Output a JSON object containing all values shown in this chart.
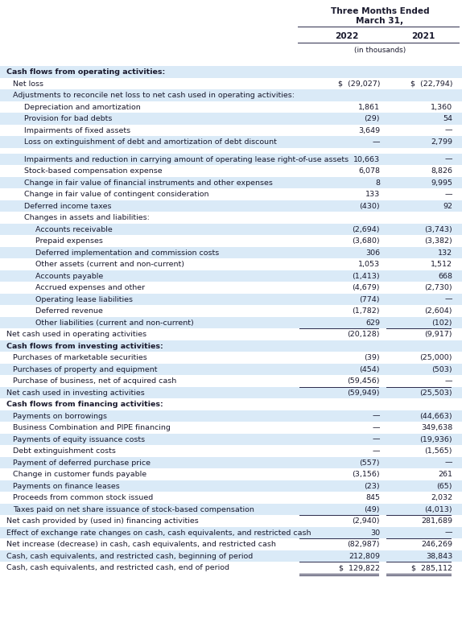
{
  "title_line1": "Three Months Ended",
  "title_line2": "March 31,",
  "col1_header": "2022",
  "col2_header": "2021",
  "subheader": "(in thousands)",
  "rows": [
    {
      "label": "Cash flows from operating activities:",
      "indent": 0,
      "v2022": "",
      "v2021": "",
      "section_header": true,
      "bg": "light"
    },
    {
      "label": "Net loss",
      "indent": 1,
      "v2022": "$  (29,027)",
      "v2021": "$  (22,794)",
      "section_header": false,
      "bg": "white"
    },
    {
      "label": "Adjustments to reconcile net loss to net cash used in operating activities:",
      "indent": 1,
      "v2022": "",
      "v2021": "",
      "section_header": false,
      "bg": "light"
    },
    {
      "label": "Depreciation and amortization",
      "indent": 2,
      "v2022": "1,861",
      "v2021": "1,360",
      "section_header": false,
      "bg": "white"
    },
    {
      "label": "Provision for bad debts",
      "indent": 2,
      "v2022": "(29)",
      "v2021": "54",
      "section_header": false,
      "bg": "light"
    },
    {
      "label": "Impairments of fixed assets",
      "indent": 2,
      "v2022": "3,649",
      "v2021": "—",
      "section_header": false,
      "bg": "white"
    },
    {
      "label": "Loss on extinguishment of debt and amortization of debt discount",
      "indent": 2,
      "v2022": "—",
      "v2021": "2,799",
      "section_header": false,
      "bg": "light"
    },
    {
      "label": "",
      "indent": 0,
      "v2022": "",
      "v2021": "",
      "section_header": false,
      "bg": "white",
      "spacer": true
    },
    {
      "label": "Impairments and reduction in carrying amount of operating lease right-of-use assets",
      "indent": 2,
      "v2022": "10,663",
      "v2021": "—",
      "section_header": false,
      "bg": "light"
    },
    {
      "label": "Stock-based compensation expense",
      "indent": 2,
      "v2022": "6,078",
      "v2021": "8,826",
      "section_header": false,
      "bg": "white"
    },
    {
      "label": "Change in fair value of financial instruments and other expenses",
      "indent": 2,
      "v2022": "8",
      "v2021": "9,995",
      "section_header": false,
      "bg": "light"
    },
    {
      "label": "Change in fair value of contingent consideration",
      "indent": 2,
      "v2022": "133",
      "v2021": "—",
      "section_header": false,
      "bg": "white"
    },
    {
      "label": "Deferred income taxes",
      "indent": 2,
      "v2022": "(430)",
      "v2021": "92",
      "section_header": false,
      "bg": "light"
    },
    {
      "label": "Changes in assets and liabilities:",
      "indent": 2,
      "v2022": "",
      "v2021": "",
      "section_header": false,
      "bg": "white"
    },
    {
      "label": "Accounts receivable",
      "indent": 3,
      "v2022": "(2,694)",
      "v2021": "(3,743)",
      "section_header": false,
      "bg": "light"
    },
    {
      "label": "Prepaid expenses",
      "indent": 3,
      "v2022": "(3,680)",
      "v2021": "(3,382)",
      "section_header": false,
      "bg": "white"
    },
    {
      "label": "Deferred implementation and commission costs",
      "indent": 3,
      "v2022": "306",
      "v2021": "132",
      "section_header": false,
      "bg": "light"
    },
    {
      "label": "Other assets (current and non-current)",
      "indent": 3,
      "v2022": "1,053",
      "v2021": "1,512",
      "section_header": false,
      "bg": "white"
    },
    {
      "label": "Accounts payable",
      "indent": 3,
      "v2022": "(1,413)",
      "v2021": "668",
      "section_header": false,
      "bg": "light"
    },
    {
      "label": "Accrued expenses and other",
      "indent": 3,
      "v2022": "(4,679)",
      "v2021": "(2,730)",
      "section_header": false,
      "bg": "white"
    },
    {
      "label": "Operating lease liabilities",
      "indent": 3,
      "v2022": "(774)",
      "v2021": "—",
      "section_header": false,
      "bg": "light"
    },
    {
      "label": "Deferred revenue",
      "indent": 3,
      "v2022": "(1,782)",
      "v2021": "(2,604)",
      "section_header": false,
      "bg": "white"
    },
    {
      "label": "Other liabilities (current and non-current)",
      "indent": 3,
      "v2022": "629",
      "v2021": "(102)",
      "section_header": false,
      "bg": "light"
    },
    {
      "label": "Net cash used in operating activities",
      "indent": 0,
      "v2022": "(20,128)",
      "v2021": "(9,917)",
      "section_header": false,
      "bg": "white",
      "top_border": true
    },
    {
      "label": "Cash flows from investing activities:",
      "indent": 0,
      "v2022": "",
      "v2021": "",
      "section_header": true,
      "bg": "light"
    },
    {
      "label": "Purchases of marketable securities",
      "indent": 1,
      "v2022": "(39)",
      "v2021": "(25,000)",
      "section_header": false,
      "bg": "white"
    },
    {
      "label": "Purchases of property and equipment",
      "indent": 1,
      "v2022": "(454)",
      "v2021": "(503)",
      "section_header": false,
      "bg": "light"
    },
    {
      "label": "Purchase of business, net of acquired cash",
      "indent": 1,
      "v2022": "(59,456)",
      "v2021": "—",
      "section_header": false,
      "bg": "white"
    },
    {
      "label": "Net cash used in investing activities",
      "indent": 0,
      "v2022": "(59,949)",
      "v2021": "(25,503)",
      "section_header": false,
      "bg": "light",
      "top_border": true
    },
    {
      "label": "Cash flows from financing activities:",
      "indent": 0,
      "v2022": "",
      "v2021": "",
      "section_header": true,
      "bg": "white"
    },
    {
      "label": "Payments on borrowings",
      "indent": 1,
      "v2022": "—",
      "v2021": "(44,663)",
      "section_header": false,
      "bg": "light"
    },
    {
      "label": "Business Combination and PIPE financing",
      "indent": 1,
      "v2022": "—",
      "v2021": "349,638",
      "section_header": false,
      "bg": "white"
    },
    {
      "label": "Payments of equity issuance costs",
      "indent": 1,
      "v2022": "—",
      "v2021": "(19,936)",
      "section_header": false,
      "bg": "light"
    },
    {
      "label": "Debt extinguishment costs",
      "indent": 1,
      "v2022": "—",
      "v2021": "(1,565)",
      "section_header": false,
      "bg": "white"
    },
    {
      "label": "Payment of deferred purchase price",
      "indent": 1,
      "v2022": "(557)",
      "v2021": "—",
      "section_header": false,
      "bg": "light"
    },
    {
      "label": "Change in customer funds payable",
      "indent": 1,
      "v2022": "(3,156)",
      "v2021": "261",
      "section_header": false,
      "bg": "white"
    },
    {
      "label": "Payments on finance leases",
      "indent": 1,
      "v2022": "(23)",
      "v2021": "(65)",
      "section_header": false,
      "bg": "light"
    },
    {
      "label": "Proceeds from common stock issued",
      "indent": 1,
      "v2022": "845",
      "v2021": "2,032",
      "section_header": false,
      "bg": "white"
    },
    {
      "label": "Taxes paid on net share issuance of stock-based compensation",
      "indent": 1,
      "v2022": "(49)",
      "v2021": "(4,013)",
      "section_header": false,
      "bg": "light"
    },
    {
      "label": "Net cash provided by (used in) financing activities",
      "indent": 0,
      "v2022": "(2,940)",
      "v2021": "281,689",
      "section_header": false,
      "bg": "white",
      "top_border": true
    },
    {
      "label": "Effect of exchange rate changes on cash, cash equivalents, and restricted cash",
      "indent": 0,
      "v2022": "30",
      "v2021": "—",
      "section_header": false,
      "bg": "light"
    },
    {
      "label": "Net increase (decrease) in cash, cash equivalents, and restricted cash",
      "indent": 0,
      "v2022": "(82,987)",
      "v2021": "246,269",
      "section_header": false,
      "bg": "white",
      "top_border": true
    },
    {
      "label": "Cash, cash equivalents, and restricted cash, beginning of period",
      "indent": 0,
      "v2022": "212,809",
      "v2021": "38,843",
      "section_header": false,
      "bg": "light"
    },
    {
      "label": "Cash, cash equivalents, and restricted cash, end of period",
      "indent": 0,
      "v2022": "$  129,822",
      "v2021": "$  285,112",
      "section_header": false,
      "bg": "white",
      "top_border": true,
      "double_border": true
    }
  ],
  "bg_light": "#daeaf7",
  "bg_white": "#ffffff",
  "text_color": "#1a1a2e",
  "line_color": "#2a2a4a"
}
